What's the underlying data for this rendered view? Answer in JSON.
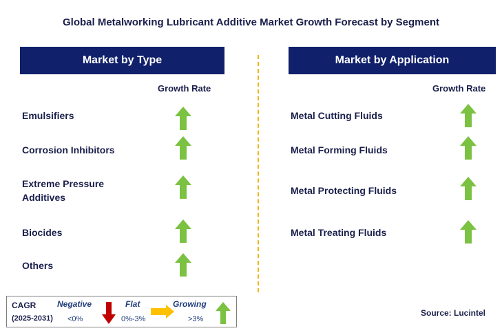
{
  "title": "Global Metalworking Lubricant Additive Market Growth Forecast by Segment",
  "left_panel": {
    "header": "Market by Type",
    "growth_label": "Growth Rate",
    "items": [
      {
        "label": "Emulsifiers",
        "trend": "growing"
      },
      {
        "label": "Corrosion Inhibitors",
        "trend": "growing"
      },
      {
        "label": "Extreme Pressure Additives",
        "line1": "Extreme Pressure",
        "line2": "Additives",
        "trend": "growing"
      },
      {
        "label": "Biocides",
        "trend": "growing"
      },
      {
        "label": "Others",
        "trend": "growing"
      }
    ]
  },
  "right_panel": {
    "header": "Market by Application",
    "growth_label": "Growth Rate",
    "items": [
      {
        "label": "Metal Cutting Fluids",
        "trend": "growing"
      },
      {
        "label": "Metal Forming Fluids",
        "trend": "growing"
      },
      {
        "label": "Metal Protecting Fluids",
        "trend": "growing"
      },
      {
        "label": "Metal Treating Fluids",
        "trend": "growing"
      }
    ]
  },
  "legend": {
    "cagr_label": "CAGR",
    "period": "(2025-2031)",
    "negative": {
      "name": "Negative",
      "range": "<0%",
      "icon": "down-arrow-icon",
      "color": "#c00000"
    },
    "flat": {
      "name": "Flat",
      "range": "0%-3%",
      "icon": "right-arrow-icon",
      "color": "#ffc000"
    },
    "growing": {
      "name": "Growing",
      "range": ">3%",
      "icon": "up-arrow-icon",
      "color": "#7cc242"
    }
  },
  "source": "Source: Lucintel",
  "colors": {
    "header_bg": "#10206b",
    "divider": "#f2b417",
    "up_arrow": "#7cc242"
  }
}
